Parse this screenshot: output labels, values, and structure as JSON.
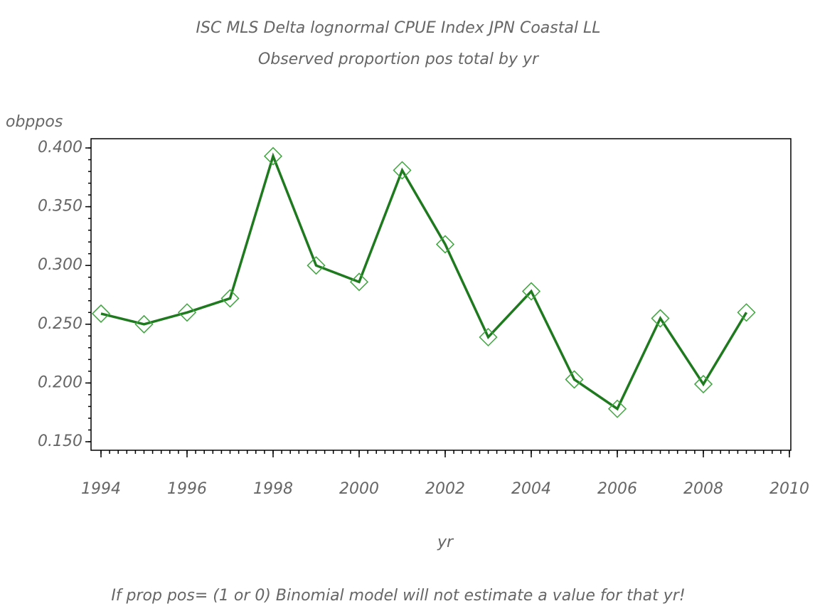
{
  "chart_data": {
    "type": "line",
    "title": "ISC MLS Delta lognormal CPUE Index JPN Coastal LL",
    "subtitle": "Observed proportion pos total by yr",
    "y_label": "obppos",
    "x_label": "yr",
    "footnote": "If prop pos= (1 or 0) Binomial model will not estimate a value for that yr!",
    "x": [
      1994,
      1995,
      1996,
      1997,
      1998,
      1999,
      2000,
      2001,
      2002,
      2003,
      2004,
      2005,
      2006,
      2007,
      2008,
      2009
    ],
    "values": [
      0.259,
      0.25,
      0.26,
      0.272,
      0.393,
      0.3,
      0.286,
      0.381,
      0.318,
      0.239,
      0.278,
      0.203,
      0.178,
      0.255,
      0.199,
      0.26
    ],
    "color": "#1f7a1f",
    "marker_color": "#3fa53f",
    "xlim": [
      1994,
      2010
    ],
    "xticks": [
      1994,
      1996,
      1998,
      2000,
      2002,
      2004,
      2006,
      2008,
      2010
    ],
    "ylim": [
      0.15,
      0.4
    ],
    "yticks": [
      {
        "value": 0.15,
        "label": "0.150"
      },
      {
        "value": 0.2,
        "label": "0.200"
      },
      {
        "value": 0.25,
        "label": "0.250"
      },
      {
        "value": 0.3,
        "label": "0.300"
      },
      {
        "value": 0.35,
        "label": "0.350"
      },
      {
        "value": 0.4,
        "label": "0.400"
      }
    ]
  }
}
